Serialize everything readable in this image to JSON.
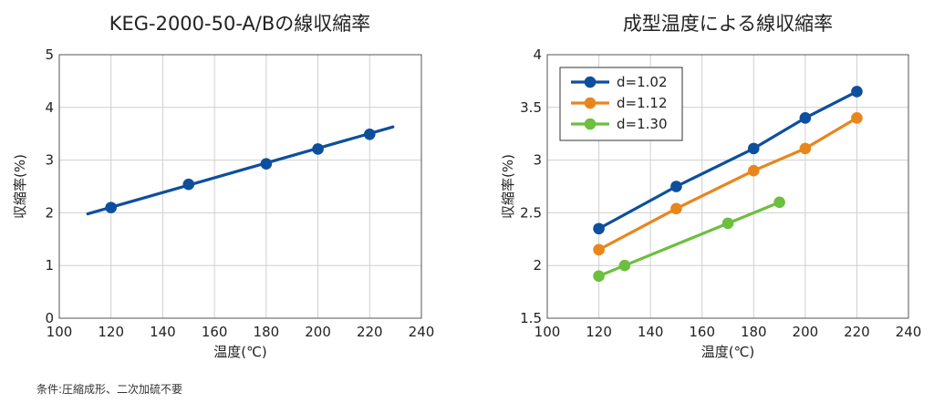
{
  "footnote": "条件:圧縮成形、二次加硫不要",
  "chart_data": [
    {
      "type": "line",
      "title": "KEG-2000-50-A/Bの線収縮率",
      "xlabel": "温度(℃)",
      "ylabel": "収縮率(%)",
      "xlim": [
        100,
        240
      ],
      "ylim": [
        0,
        5
      ],
      "xticks": [
        100,
        120,
        140,
        160,
        180,
        200,
        220,
        240
      ],
      "yticks": [
        0,
        1,
        2,
        3,
        4,
        5
      ],
      "grid": true,
      "series": [
        {
          "color": "#0d4f9e",
          "points": [
            [
              120,
              2.1
            ],
            [
              150,
              2.54
            ],
            [
              180,
              2.93
            ],
            [
              200,
              3.21
            ],
            [
              220,
              3.49
            ]
          ],
          "trend": [
            [
              111,
              1.98
            ],
            [
              229,
              3.63
            ]
          ]
        }
      ]
    },
    {
      "type": "line",
      "title": "成型温度による線収縮率",
      "xlabel": "温度(℃)",
      "ylabel": "収縮率(%)",
      "xlim": [
        100,
        240
      ],
      "ylim": [
        1.5,
        4
      ],
      "xticks": [
        100,
        120,
        140,
        160,
        180,
        200,
        220,
        240
      ],
      "yticks": [
        1.5,
        2,
        2.5,
        3,
        3.5,
        4
      ],
      "grid": true,
      "legend_position": "top-left",
      "series": [
        {
          "name": "d=1.02",
          "color": "#0d4f9e",
          "points": [
            [
              120,
              2.35
            ],
            [
              150,
              2.75
            ],
            [
              180,
              3.11
            ],
            [
              200,
              3.4
            ],
            [
              220,
              3.65
            ]
          ]
        },
        {
          "name": "d=1.12",
          "color": "#e8861d",
          "points": [
            [
              120,
              2.15
            ],
            [
              150,
              2.54
            ],
            [
              180,
              2.9
            ],
            [
              200,
              3.11
            ],
            [
              220,
              3.4
            ]
          ]
        },
        {
          "name": "d=1.30",
          "color": "#6cbf3f",
          "points": [
            [
              120,
              1.9
            ],
            [
              130,
              2.0
            ],
            [
              170,
              2.4
            ],
            [
              190,
              2.6
            ]
          ]
        }
      ]
    }
  ]
}
